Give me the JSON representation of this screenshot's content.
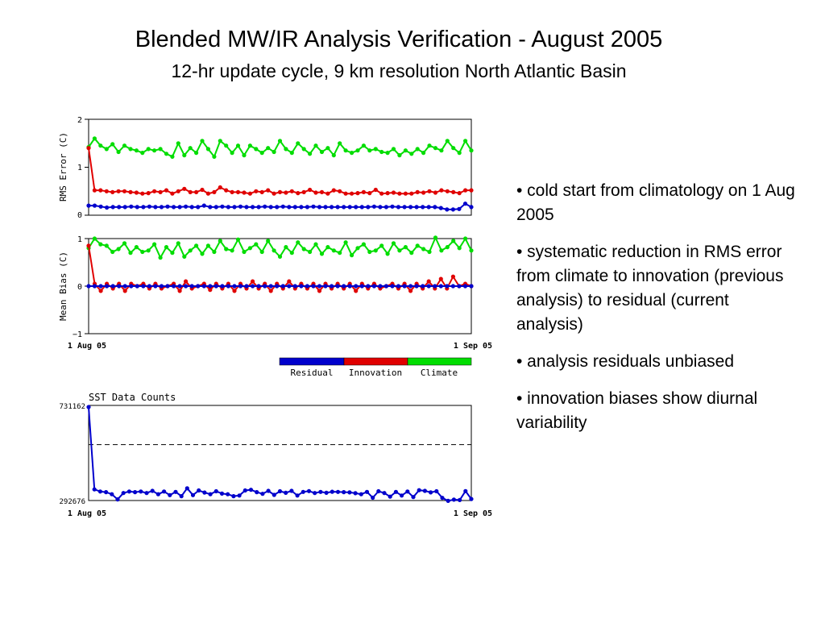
{
  "slide": {
    "title": "Blended MW/IR Analysis Verification - August 2005",
    "subtitle": "12-hr update cycle, 9 km resolution North Atlantic Basin",
    "bullets": [
      "• cold start from climatology on 1 Aug 2005",
      "• systematic reduction in RMS error from climate to innovation (previous analysis) to residual (current analysis)",
      "• analysis residuals unbiased",
      "• innovation biases show diurnal variability"
    ]
  },
  "legend": {
    "items": [
      {
        "label": "Residual",
        "color": "#0000cc"
      },
      {
        "label": "Innovation",
        "color": "#e00000"
      },
      {
        "label": "Climate",
        "color": "#00dd00"
      }
    ]
  },
  "chart_data": [
    {
      "type": "line",
      "ylabel": "RMS Error (C)",
      "ylim": [
        0,
        2
      ],
      "yticks": [
        "0",
        "1",
        "2"
      ],
      "series": [
        {
          "name": "Residual",
          "color": "#0000cc",
          "values": [
            0.2,
            0.2,
            0.18,
            0.16,
            0.17,
            0.17,
            0.17,
            0.18,
            0.17,
            0.17,
            0.18,
            0.17,
            0.17,
            0.18,
            0.17,
            0.17,
            0.18,
            0.17,
            0.17,
            0.2,
            0.17,
            0.17,
            0.18,
            0.17,
            0.17,
            0.18,
            0.17,
            0.17,
            0.17,
            0.18,
            0.17,
            0.17,
            0.18,
            0.17,
            0.17,
            0.17,
            0.17,
            0.18,
            0.17,
            0.17,
            0.17,
            0.17,
            0.17,
            0.17,
            0.17,
            0.17,
            0.17,
            0.18,
            0.17,
            0.17,
            0.18,
            0.17,
            0.17,
            0.17,
            0.17,
            0.17,
            0.17,
            0.17,
            0.15,
            0.12,
            0.12,
            0.13,
            0.24,
            0.17
          ]
        },
        {
          "name": "Innovation",
          "color": "#e00000",
          "values": [
            1.4,
            0.52,
            0.52,
            0.5,
            0.48,
            0.5,
            0.5,
            0.48,
            0.47,
            0.45,
            0.46,
            0.5,
            0.48,
            0.52,
            0.45,
            0.5,
            0.55,
            0.48,
            0.48,
            0.53,
            0.45,
            0.48,
            0.58,
            0.52,
            0.48,
            0.48,
            0.47,
            0.45,
            0.5,
            0.48,
            0.52,
            0.45,
            0.48,
            0.47,
            0.5,
            0.46,
            0.48,
            0.53,
            0.47,
            0.48,
            0.45,
            0.52,
            0.5,
            0.45,
            0.45,
            0.46,
            0.48,
            0.46,
            0.53,
            0.45,
            0.46,
            0.47,
            0.45,
            0.45,
            0.45,
            0.48,
            0.47,
            0.5,
            0.47,
            0.52,
            0.5,
            0.48,
            0.46,
            0.52,
            0.52
          ]
        },
        {
          "name": "Climate",
          "color": "#00dd00",
          "values": [
            1.42,
            1.6,
            1.45,
            1.38,
            1.48,
            1.32,
            1.45,
            1.38,
            1.35,
            1.3,
            1.38,
            1.35,
            1.38,
            1.28,
            1.22,
            1.5,
            1.25,
            1.4,
            1.3,
            1.55,
            1.38,
            1.22,
            1.55,
            1.45,
            1.3,
            1.45,
            1.25,
            1.45,
            1.38,
            1.3,
            1.4,
            1.32,
            1.55,
            1.38,
            1.3,
            1.5,
            1.38,
            1.28,
            1.45,
            1.32,
            1.4,
            1.25,
            1.5,
            1.35,
            1.3,
            1.35,
            1.45,
            1.35,
            1.38,
            1.32,
            1.3,
            1.38,
            1.25,
            1.35,
            1.28,
            1.38,
            1.3,
            1.45,
            1.4,
            1.35,
            1.55,
            1.4,
            1.3,
            1.55,
            1.35
          ]
        }
      ]
    },
    {
      "type": "line",
      "ylabel": "Mean Bias (C)",
      "ylim": [
        -1,
        1
      ],
      "yticks": [
        "−1",
        "0",
        "1"
      ],
      "xticks": [
        "1 Aug 05",
        "1 Sep 05"
      ],
      "series": [
        {
          "name": "Residual",
          "color": "#0000cc",
          "values": [
            0,
            0,
            0,
            0,
            0,
            0,
            0,
            0,
            0,
            0,
            0,
            0,
            0,
            0,
            0,
            0,
            0,
            0,
            0,
            0,
            0,
            0,
            0,
            0,
            0,
            0,
            0,
            0,
            0,
            0,
            0,
            0,
            0,
            0,
            0,
            0,
            0,
            0,
            0,
            0,
            0,
            0,
            0,
            0,
            0,
            0,
            0,
            0,
            0,
            0,
            0,
            0,
            0,
            0,
            0,
            0,
            0,
            0,
            0,
            0,
            0,
            0,
            0,
            0
          ]
        },
        {
          "name": "Innovation",
          "color": "#e00000",
          "values": [
            0.85,
            0.05,
            -0.1,
            0.05,
            -0.05,
            0.05,
            -0.1,
            0.05,
            0,
            0.05,
            -0.05,
            0.05,
            -0.05,
            0,
            0.05,
            -0.1,
            0.1,
            -0.05,
            0,
            0.05,
            -0.08,
            0.05,
            -0.05,
            0.05,
            -0.1,
            0.05,
            -0.05,
            0.1,
            -0.05,
            0.05,
            -0.1,
            0.05,
            -0.05,
            0.1,
            -0.05,
            0.05,
            -0.05,
            0.05,
            -0.1,
            0.05,
            -0.05,
            0.05,
            -0.05,
            0.05,
            -0.1,
            0.05,
            -0.05,
            0.05,
            -0.05,
            0,
            0.05,
            -0.05,
            0.05,
            -0.1,
            0.05,
            -0.05,
            0.1,
            -0.05,
            0.15,
            -0.05,
            0.2,
            0,
            0.05,
            0
          ]
        },
        {
          "name": "Climate",
          "color": "#00dd00",
          "values": [
            0.8,
            1.0,
            0.88,
            0.85,
            0.72,
            0.78,
            0.9,
            0.7,
            0.82,
            0.72,
            0.75,
            0.88,
            0.6,
            0.82,
            0.7,
            0.9,
            0.62,
            0.75,
            0.85,
            0.68,
            0.85,
            0.72,
            0.95,
            0.78,
            0.75,
            0.98,
            0.72,
            0.8,
            0.88,
            0.72,
            0.95,
            0.75,
            0.62,
            0.82,
            0.7,
            0.92,
            0.78,
            0.72,
            0.88,
            0.68,
            0.82,
            0.75,
            0.7,
            0.92,
            0.65,
            0.8,
            0.88,
            0.72,
            0.75,
            0.85,
            0.68,
            0.9,
            0.75,
            0.82,
            0.7,
            0.85,
            0.78,
            0.72,
            1.02,
            0.75,
            0.82,
            0.95,
            0.8,
            1.0,
            0.75
          ]
        }
      ]
    },
    {
      "type": "line",
      "title": "SST Data Counts",
      "ylim": [
        292676,
        731162
      ],
      "yticks": [
        "292676",
        "731162"
      ],
      "xticks": [
        "1 Aug 05",
        "1 Sep 05"
      ],
      "reference_line": 555000,
      "series": [
        {
          "name": "SST Data Counts",
          "color": "#0000cc",
          "values": [
            731162,
            345000,
            335000,
            332000,
            322000,
            298000,
            328000,
            335000,
            332000,
            335000,
            328000,
            338000,
            322000,
            335000,
            318000,
            333000,
            313000,
            350000,
            318000,
            340000,
            330000,
            322000,
            336000,
            325000,
            322000,
            313000,
            316000,
            340000,
            343000,
            332000,
            324000,
            338000,
            319000,
            336000,
            329000,
            338000,
            316000,
            333000,
            337000,
            328000,
            333000,
            329000,
            334000,
            333000,
            332000,
            331000,
            327000,
            322000,
            333000,
            306000,
            336000,
            328000,
            311000,
            333000,
            316000,
            335000,
            309000,
            341000,
            338000,
            331000,
            336000,
            305000,
            291000,
            297000,
            295000,
            337000,
            300000
          ]
        }
      ]
    }
  ]
}
